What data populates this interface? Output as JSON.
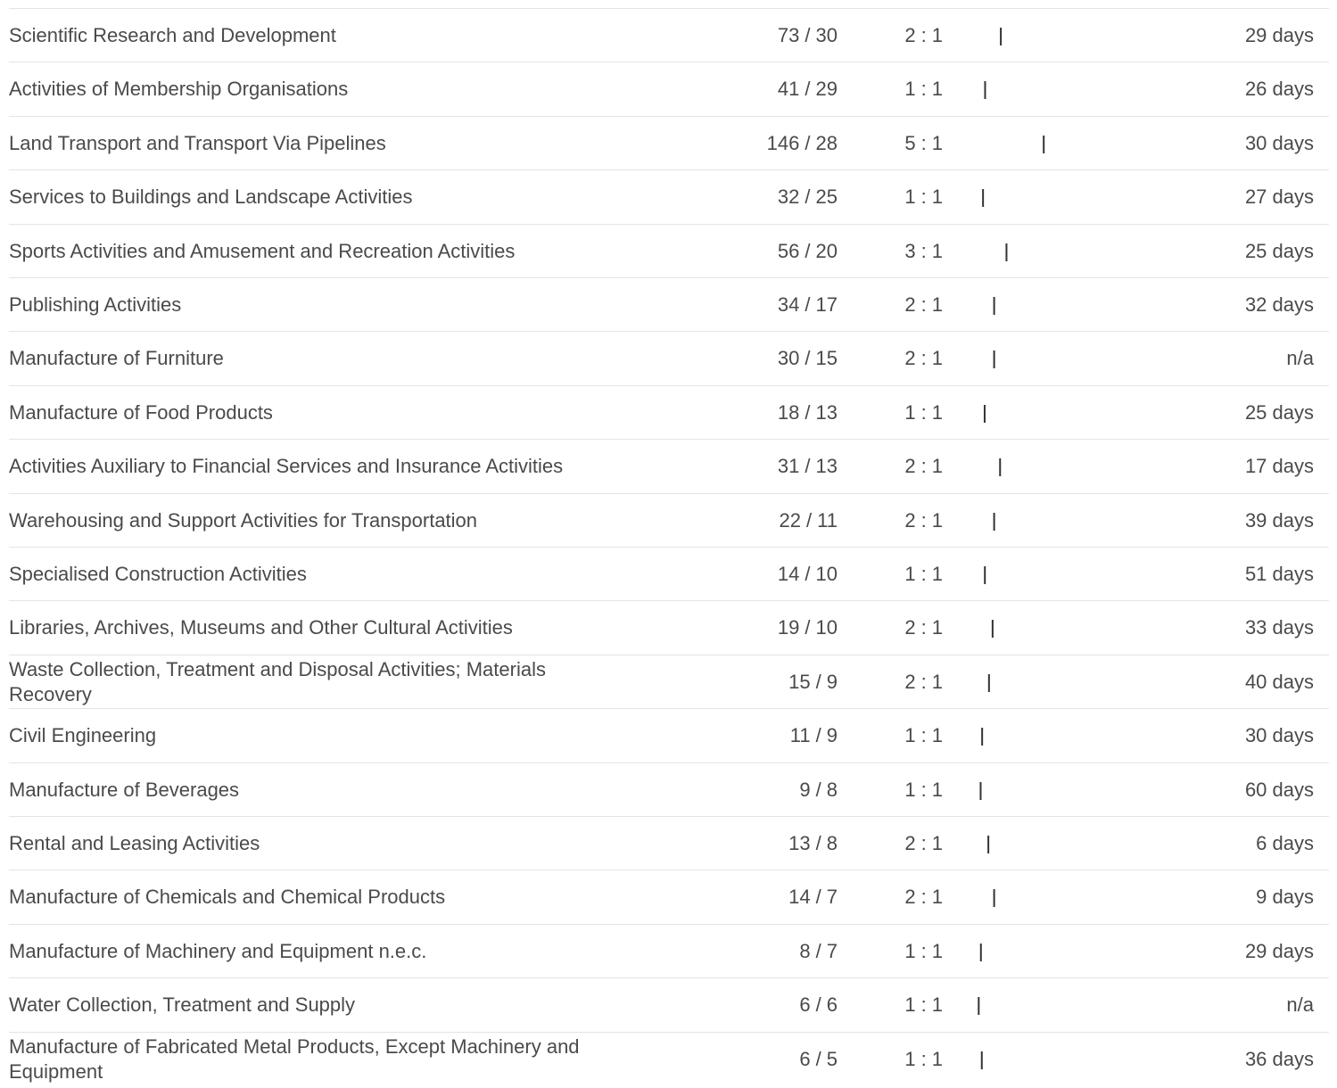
{
  "count_separator": "/",
  "ratio_separator": ":",
  "rows": [
    {
      "name": "Scientific Research and Development",
      "left": 73,
      "right": 30,
      "ratio_left": 2,
      "ratio_right": 1,
      "days": "29 days"
    },
    {
      "name": "Activities of Membership Organisations",
      "left": 41,
      "right": 29,
      "ratio_left": 1,
      "ratio_right": 1,
      "days": "26 days"
    },
    {
      "name": "Land Transport and Transport Via Pipelines",
      "left": 146,
      "right": 28,
      "ratio_left": 5,
      "ratio_right": 1,
      "days": "30 days"
    },
    {
      "name": "Services to Buildings and Landscape Activities",
      "left": 32,
      "right": 25,
      "ratio_left": 1,
      "ratio_right": 1,
      "days": "27 days"
    },
    {
      "name": "Sports Activities and Amusement and Recreation Activities",
      "left": 56,
      "right": 20,
      "ratio_left": 3,
      "ratio_right": 1,
      "days": "25 days"
    },
    {
      "name": "Publishing Activities",
      "left": 34,
      "right": 17,
      "ratio_left": 2,
      "ratio_right": 1,
      "days": "32 days"
    },
    {
      "name": "Manufacture of Furniture",
      "left": 30,
      "right": 15,
      "ratio_left": 2,
      "ratio_right": 1,
      "days": "n/a"
    },
    {
      "name": "Manufacture of Food Products",
      "left": 18,
      "right": 13,
      "ratio_left": 1,
      "ratio_right": 1,
      "days": "25 days"
    },
    {
      "name": "Activities Auxiliary to Financial Services and Insurance Activities",
      "left": 31,
      "right": 13,
      "ratio_left": 2,
      "ratio_right": 1,
      "days": "17 days"
    },
    {
      "name": "Warehousing and Support Activities for Transportation",
      "left": 22,
      "right": 11,
      "ratio_left": 2,
      "ratio_right": 1,
      "days": "39 days"
    },
    {
      "name": "Specialised Construction Activities",
      "left": 14,
      "right": 10,
      "ratio_left": 1,
      "ratio_right": 1,
      "days": "51 days"
    },
    {
      "name": "Libraries, Archives, Museums and Other Cultural Activities",
      "left": 19,
      "right": 10,
      "ratio_left": 2,
      "ratio_right": 1,
      "days": "33 days"
    },
    {
      "name": "Waste Collection, Treatment and Disposal Activities; Materials Recovery",
      "left": 15,
      "right": 9,
      "ratio_left": 2,
      "ratio_right": 1,
      "days": "40 days"
    },
    {
      "name": "Civil Engineering",
      "left": 11,
      "right": 9,
      "ratio_left": 1,
      "ratio_right": 1,
      "days": "30 days"
    },
    {
      "name": "Manufacture of Beverages",
      "left": 9,
      "right": 8,
      "ratio_left": 1,
      "ratio_right": 1,
      "days": "60 days"
    },
    {
      "name": "Rental and Leasing Activities",
      "left": 13,
      "right": 8,
      "ratio_left": 2,
      "ratio_right": 1,
      "days": "6 days"
    },
    {
      "name": "Manufacture of Chemicals and Chemical Products",
      "left": 14,
      "right": 7,
      "ratio_left": 2,
      "ratio_right": 1,
      "days": "9 days"
    },
    {
      "name": "Manufacture of Machinery and Equipment n.e.c.",
      "left": 8,
      "right": 7,
      "ratio_left": 1,
      "ratio_right": 1,
      "days": "29 days"
    },
    {
      "name": "Water Collection, Treatment and Supply",
      "left": 6,
      "right": 6,
      "ratio_left": 1,
      "ratio_right": 1,
      "days": "n/a"
    },
    {
      "name": "Manufacture of Fabricated Metal Products, Except Machinery and Equipment",
      "left": 6,
      "right": 5,
      "ratio_left": 1,
      "ratio_right": 1,
      "days": "36 days"
    }
  ]
}
